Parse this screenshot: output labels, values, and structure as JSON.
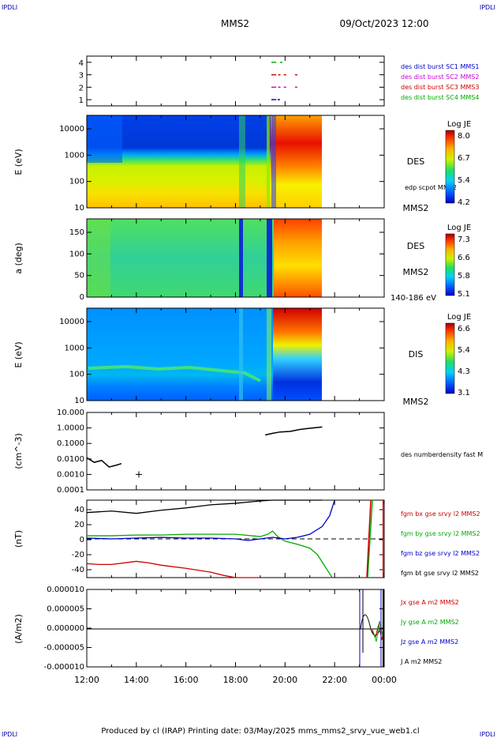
{
  "header": {
    "corner_tl": "IPDLI",
    "corner_tr": "IPDLI",
    "corner_bl": "IPDLI",
    "corner_br": "IPDLI",
    "title": "MMS2",
    "datetime": "09/Oct/2023 12:00"
  },
  "footer": {
    "text": "Produced by cl (IRAP)   Printing date: 03/May/2025   mms_mms2_srvy_vue_web1.cl"
  },
  "chart_data": [
    {
      "type": "scatter",
      "panel": "burst-modes",
      "yticks": [
        "1",
        "2",
        "3",
        "4"
      ],
      "ylim": [
        0.5,
        4.5
      ],
      "legend": [
        {
          "label": "des dist burst SC1 MMS1",
          "color": "#0000cc"
        },
        {
          "label": "des dist burst SC2 MMS2",
          "color": "#cc00cc"
        },
        {
          "label": "des dist burst SC3 MMS3",
          "color": "#cc0000"
        },
        {
          "label": "des dist burst SC4 MMS4",
          "color": "#00aa00"
        }
      ],
      "series": [
        {
          "name": "des dist burst SC1 MMS1",
          "y": 1,
          "color": "#0000cc",
          "x": [
            19.45,
            19.55,
            19.7
          ]
        },
        {
          "name": "des dist burst SC2 MMS2",
          "y": 2,
          "color": "#cc00cc",
          "x": [
            19.45,
            19.55,
            19.72,
            19.95,
            20.4
          ]
        },
        {
          "name": "des dist burst SC3 MMS3",
          "y": 3,
          "color": "#cc0000",
          "x": [
            19.45,
            19.55,
            19.72,
            19.95,
            20.4
          ]
        },
        {
          "name": "des dist burst SC4 MMS4",
          "y": 4,
          "color": "#00aa00",
          "x": [
            19.45,
            19.55,
            19.8
          ]
        }
      ]
    },
    {
      "type": "heatmap",
      "panel": "des-energy",
      "ylabel": "E (eV)",
      "yscale": "log",
      "yticks": [
        "10",
        "100",
        "1000",
        "10000"
      ],
      "label": "DES",
      "sublabel": "edp scpot MMS2",
      "probe": "MMS2",
      "colorbar": {
        "title": "Log JE",
        "ticks": [
          "8.0",
          "6.7",
          "5.4",
          "4.2"
        ]
      }
    },
    {
      "type": "heatmap",
      "panel": "des-pitch",
      "ylabel": "a (deg)",
      "yticks": [
        "0",
        "50",
        "100",
        "150"
      ],
      "ylim": [
        0,
        180
      ],
      "label": "DES",
      "probe": "MMS2",
      "energy_range": "140-186 eV",
      "colorbar": {
        "title": "Log JE",
        "ticks": [
          "7.3",
          "6.6",
          "5.8",
          "5.1"
        ]
      }
    },
    {
      "type": "heatmap",
      "panel": "dis-energy",
      "ylabel": "E (eV)",
      "yscale": "log",
      "yticks": [
        "10",
        "100",
        "1000",
        "10000"
      ],
      "label": "DIS",
      "probe": "MMS2",
      "colorbar": {
        "title": "Log JE",
        "ticks": [
          "6.6",
          "5.4",
          "4.3",
          "3.1"
        ]
      }
    },
    {
      "type": "line",
      "panel": "density",
      "ylabel": "(cm^-3)",
      "yscale": "log",
      "yticks": [
        "10.000",
        "1.0000",
        "0.1000",
        "0.0100",
        "0.0010",
        "0.0001"
      ],
      "ylim": [
        0.0001,
        10
      ],
      "legend": [
        {
          "label": "des numberdensity fast M",
          "color": "#000000"
        }
      ],
      "series": [
        {
          "name": "des numberdensity fast M",
          "color": "#000000",
          "segments": [
            {
              "x": [
                12.0,
                12.3,
                12.6,
                12.9,
                13.2,
                13.4
              ],
              "y": [
                0.012,
                0.006,
                0.008,
                0.003,
                0.004,
                0.005
              ]
            },
            {
              "x": [
                19.2,
                19.5,
                19.8,
                20.2,
                20.6,
                21.0,
                21.5
              ],
              "y": [
                0.35,
                0.45,
                0.55,
                0.6,
                0.8,
                0.95,
                1.15
              ]
            }
          ],
          "marker": {
            "x": 14.1,
            "y": 0.001
          }
        }
      ]
    },
    {
      "type": "line",
      "panel": "magnetic-field",
      "ylabel": "(nT)",
      "yticks": [
        "40",
        "20",
        "0",
        "-20",
        "-40"
      ],
      "ylim": [
        -50,
        50
      ],
      "legend": [
        {
          "label": "fgm bx gse srvy l2 MMS2",
          "color": "#cc0000"
        },
        {
          "label": "fgm by gse srvy l2 MMS2",
          "color": "#00aa00"
        },
        {
          "label": "fgm bz gse srvy l2 MMS2",
          "color": "#0000cc"
        },
        {
          "label": "fgm bt gse srvy l2 MMS2",
          "color": "#000000"
        }
      ],
      "series": [
        {
          "name": "fgm bt gse srvy l2 MMS2",
          "color": "#000000",
          "x": [
            12.0,
            13.0,
            14.0,
            15.0,
            16.0,
            17.0,
            18.0,
            19.0,
            19.5,
            20.0,
            20.5,
            21.0,
            21.5
          ],
          "y": [
            34,
            36,
            33,
            37,
            40,
            44,
            46,
            49,
            52,
            55,
            58,
            60,
            62
          ]
        },
        {
          "name": "fgm bx gse srvy l2 MMS2",
          "color": "#cc0000",
          "x": [
            12.0,
            12.5,
            13.0,
            14.0,
            14.5,
            15.0,
            16.0,
            17.0,
            17.5,
            18.0,
            19.0
          ],
          "y": [
            -32,
            -33,
            -33,
            -29,
            -31,
            -34,
            -38,
            -43,
            -47,
            -52,
            -60
          ]
        },
        {
          "name": "fgm by gse srvy l2 MMS2",
          "color": "#00aa00",
          "x": [
            12.0,
            13.0,
            14.0,
            15.0,
            16.0,
            17.0,
            18.0,
            19.0,
            19.3,
            19.5,
            19.7,
            20.0,
            20.5,
            21.0,
            21.3,
            21.5,
            21.7,
            21.9
          ],
          "y": [
            4,
            4,
            5,
            5,
            6,
            6,
            6,
            3,
            6,
            10,
            3,
            -3,
            -7,
            -12,
            -20,
            -30,
            -40,
            -55
          ]
        },
        {
          "name": "fgm bz gse srvy l2 MMS2",
          "color": "#0000cc",
          "x": [
            12.0,
            13.0,
            14.0,
            15.0,
            16.0,
            17.0,
            18.0,
            18.5,
            19.0,
            19.5,
            20.0,
            20.5,
            21.0,
            21.5,
            21.8,
            22.0
          ],
          "y": [
            1,
            0,
            1,
            2,
            1,
            1,
            0,
            -2,
            0,
            2,
            0,
            2,
            6,
            16,
            30,
            50
          ]
        }
      ],
      "reference_line": 0
    },
    {
      "type": "line",
      "panel": "current-density",
      "ylabel": "(A/m2)",
      "yticks": [
        "0.000010",
        "0.000005",
        "0.000000",
        "-0.000005",
        "-0.000010"
      ],
      "ylim": [
        -1e-05,
        1e-05
      ],
      "xticks": [
        "12:00",
        "14:00",
        "16:00",
        "18:00",
        "20:00",
        "22:00",
        "00:00"
      ],
      "legend": [
        {
          "label": "Jx gse A m2 MMS2",
          "color": "#cc0000"
        },
        {
          "label": "Jy gse A m2 MMS2",
          "color": "#00aa00"
        },
        {
          "label": "Jz gse A m2 MMS2",
          "color": "#0000cc"
        },
        {
          "label": "J A m2 MMS2",
          "color": "#000000"
        }
      ]
    }
  ]
}
